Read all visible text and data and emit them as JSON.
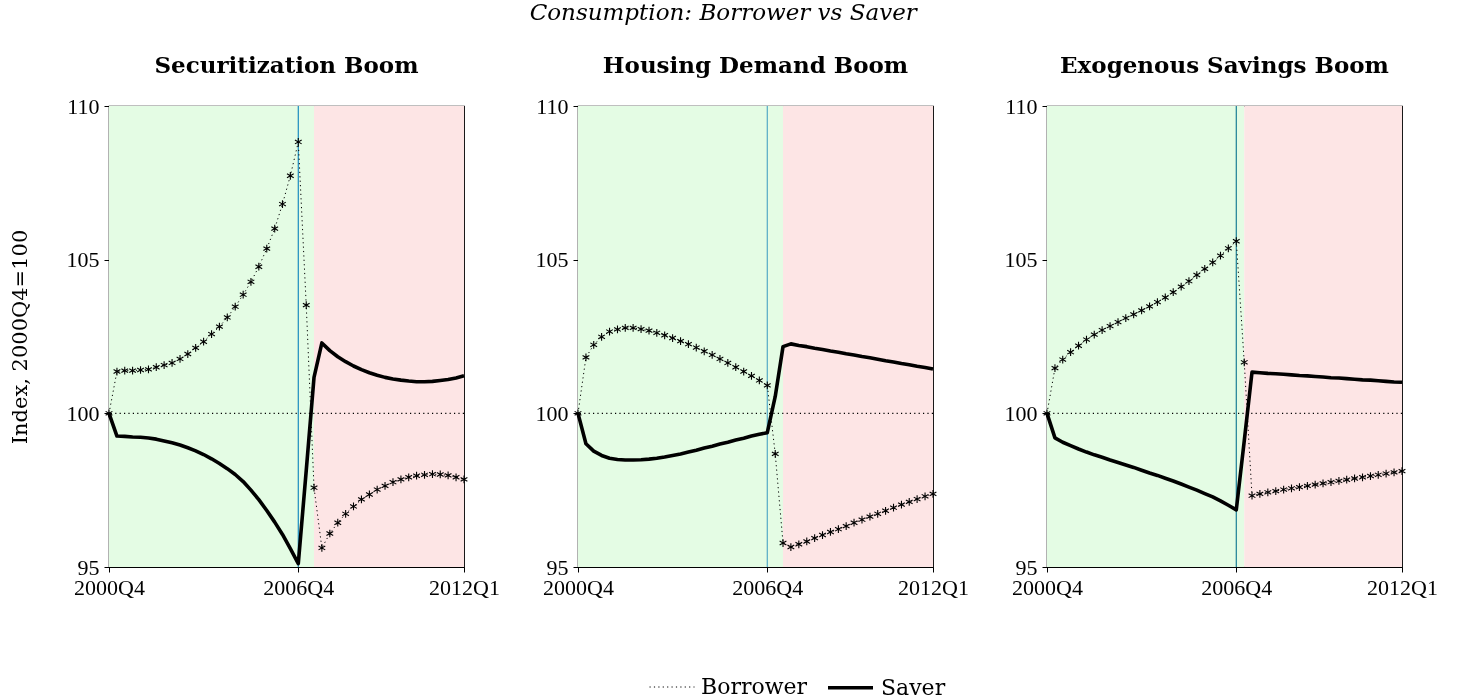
{
  "chart_data": [
    {
      "type": "line",
      "title": "Securitization Boom",
      "ylabel": "Index, 2000Q4=100",
      "annotations": [
        "Consumption: Borrower vs Saver"
      ],
      "x": [
        "2000-10",
        "2001-01",
        "2001-04",
        "2001-07",
        "2001-10",
        "2002-01",
        "2002-04",
        "2002-07",
        "2002-10",
        "2003-01",
        "2003-04",
        "2003-07",
        "2003-10",
        "2004-01",
        "2004-04",
        "2004-07",
        "2004-10",
        "2005-01",
        "2005-04",
        "2005-07",
        "2005-10",
        "2006-01",
        "2006-04",
        "2006-07",
        "2006-10",
        "2007-01",
        "2007-04",
        "2007-07",
        "2007-10",
        "2008-01",
        "2008-04",
        "2008-07",
        "2008-10",
        "2009-01",
        "2009-04",
        "2009-07",
        "2009-10",
        "2010-01",
        "2010-04",
        "2010-07",
        "2010-10",
        "2011-01",
        "2011-04",
        "2011-07",
        "2011-10",
        "2012-01"
      ],
      "xlim": [
        "2000-10",
        "2012-01"
      ],
      "xticks": [
        {
          "value": "2000-10",
          "label": "2000Q4"
        },
        {
          "value": "2006-10",
          "label": "2006Q4"
        },
        {
          "value": "2012-01",
          "label": "2012Q1"
        }
      ],
      "ylim": [
        95,
        110
      ],
      "yticks": [
        95,
        100,
        105,
        110
      ],
      "bands": [
        {
          "axis": "x",
          "from": "2000-10",
          "to": "2007-04",
          "color": "#e4fce4"
        },
        {
          "axis": "x",
          "from": "2007-04",
          "to": "2012-01",
          "color": "#fde5e5"
        }
      ],
      "ref_lines": [
        {
          "axis": "y",
          "value": 100,
          "color": "#000000",
          "line_style": "dotted"
        },
        {
          "axis": "x",
          "value": "2006-10",
          "color": "#1b8bbf",
          "line_style": "solid"
        }
      ],
      "series": [
        {
          "color": "#000000",
          "marker": "cross",
          "line_style": "dotted",
          "values": [
            100,
            101.36,
            101.39,
            101.39,
            101.41,
            101.43,
            101.5,
            101.57,
            101.64,
            101.77,
            101.93,
            102.13,
            102.33,
            102.58,
            102.82,
            103.12,
            103.47,
            103.86,
            104.28,
            104.77,
            105.36,
            106.01,
            106.81,
            107.73,
            108.83,
            103.52,
            97.58,
            95.62,
            96.09,
            96.44,
            96.73,
            96.97,
            97.2,
            97.36,
            97.52,
            97.64,
            97.76,
            97.85,
            97.92,
            97.97,
            98.0,
            98.02,
            98.01,
            97.98,
            97.92,
            97.85
          ]
        },
        {
          "color": "#000000",
          "line_style": "solid",
          "values": [
            100,
            99.26,
            99.25,
            99.23,
            99.22,
            99.2,
            99.16,
            99.1,
            99.04,
            98.97,
            98.88,
            98.78,
            98.66,
            98.52,
            98.37,
            98.2,
            98.01,
            97.78,
            97.5,
            97.19,
            96.84,
            96.46,
            96.06,
            95.6,
            95.11,
            98.14,
            101.17,
            102.29,
            102.04,
            101.84,
            101.68,
            101.54,
            101.42,
            101.32,
            101.24,
            101.17,
            101.12,
            101.08,
            101.05,
            101.03,
            101.03,
            101.04,
            101.07,
            101.1,
            101.15,
            101.22
          ]
        }
      ]
    },
    {
      "type": "line",
      "title": "Housing Demand Boom",
      "legend": "bottom",
      "x": [
        "2000-10",
        "2001-01",
        "2001-04",
        "2001-07",
        "2001-10",
        "2002-01",
        "2002-04",
        "2002-07",
        "2002-10",
        "2003-01",
        "2003-04",
        "2003-07",
        "2003-10",
        "2004-01",
        "2004-04",
        "2004-07",
        "2004-10",
        "2005-01",
        "2005-04",
        "2005-07",
        "2005-10",
        "2006-01",
        "2006-04",
        "2006-07",
        "2006-10",
        "2007-01",
        "2007-04",
        "2007-07",
        "2007-10",
        "2008-01",
        "2008-04",
        "2008-07",
        "2008-10",
        "2009-01",
        "2009-04",
        "2009-07",
        "2009-10",
        "2010-01",
        "2010-04",
        "2010-07",
        "2010-10",
        "2011-01",
        "2011-04",
        "2011-07",
        "2011-10",
        "2012-01"
      ],
      "xlim": [
        "2000-10",
        "2012-01"
      ],
      "xticks": [
        {
          "value": "2000-10",
          "label": "2000Q4"
        },
        {
          "value": "2006-10",
          "label": "2006Q4"
        },
        {
          "value": "2012-01",
          "label": "2012Q1"
        }
      ],
      "ylim": [
        95,
        110
      ],
      "yticks": [
        95,
        100,
        105,
        110
      ],
      "bands": [
        {
          "axis": "x",
          "from": "2000-10",
          "to": "2007-04",
          "color": "#e4fce4"
        },
        {
          "axis": "x",
          "from": "2007-04",
          "to": "2012-01",
          "color": "#fde5e5"
        }
      ],
      "ref_lines": [
        {
          "axis": "y",
          "value": 100,
          "color": "#000000",
          "line_style": "dotted"
        },
        {
          "axis": "x",
          "value": "2006-10",
          "color": "#55a9c6",
          "line_style": "solid"
        }
      ],
      "series": [
        {
          "name": "Borrower",
          "color": "#000000",
          "marker": "cross",
          "line_style": "dotted",
          "values": [
            100,
            101.82,
            102.23,
            102.49,
            102.66,
            102.73,
            102.78,
            102.78,
            102.74,
            102.69,
            102.62,
            102.54,
            102.45,
            102.35,
            102.25,
            102.14,
            102.02,
            101.9,
            101.77,
            101.64,
            101.5,
            101.36,
            101.22,
            101.07,
            100.91,
            98.68,
            95.78,
            95.65,
            95.74,
            95.83,
            95.94,
            96.04,
            96.14,
            96.23,
            96.33,
            96.44,
            96.54,
            96.64,
            96.73,
            96.83,
            96.93,
            97.03,
            97.12,
            97.21,
            97.3,
            97.38
          ]
        },
        {
          "name": "Saver",
          "color": "#000000",
          "line_style": "solid",
          "values": [
            100,
            99.01,
            98.77,
            98.63,
            98.54,
            98.5,
            98.48,
            98.48,
            98.49,
            98.51,
            98.54,
            98.58,
            98.63,
            98.68,
            98.74,
            98.8,
            98.87,
            98.93,
            99.0,
            99.06,
            99.13,
            99.19,
            99.26,
            99.32,
            99.37,
            100.55,
            102.17,
            102.26,
            102.21,
            102.17,
            102.12,
            102.08,
            102.03,
            101.99,
            101.94,
            101.9,
            101.85,
            101.81,
            101.76,
            101.71,
            101.67,
            101.62,
            101.58,
            101.53,
            101.49,
            101.44
          ]
        }
      ]
    },
    {
      "type": "line",
      "title": "Exogenous Savings Boom",
      "x": [
        "2000-10",
        "2001-01",
        "2001-04",
        "2001-07",
        "2001-10",
        "2002-01",
        "2002-04",
        "2002-07",
        "2002-10",
        "2003-01",
        "2003-04",
        "2003-07",
        "2003-10",
        "2004-01",
        "2004-04",
        "2004-07",
        "2004-10",
        "2005-01",
        "2005-04",
        "2005-07",
        "2005-10",
        "2006-01",
        "2006-04",
        "2006-07",
        "2006-10",
        "2007-01",
        "2007-04",
        "2007-07",
        "2007-10",
        "2008-01",
        "2008-04",
        "2008-07",
        "2008-10",
        "2009-01",
        "2009-04",
        "2009-07",
        "2009-10",
        "2010-01",
        "2010-04",
        "2010-07",
        "2010-10",
        "2011-01",
        "2011-04",
        "2011-07",
        "2011-10",
        "2012-01"
      ],
      "xlim": [
        "2000-10",
        "2012-01"
      ],
      "xticks": [
        {
          "value": "2000-10",
          "label": "2000Q4"
        },
        {
          "value": "2006-10",
          "label": "2006Q4"
        },
        {
          "value": "2012-01",
          "label": "2012Q1"
        }
      ],
      "ylim": [
        95,
        110
      ],
      "yticks": [
        95,
        100,
        105,
        110
      ],
      "bands": [
        {
          "axis": "x",
          "from": "2000-10",
          "to": "2007-01",
          "color": "#e4fce4"
        },
        {
          "axis": "x",
          "from": "2007-01",
          "to": "2012-01",
          "color": "#fde5e5"
        }
      ],
      "ref_lines": [
        {
          "axis": "y",
          "value": 100,
          "color": "#000000",
          "line_style": "dotted"
        },
        {
          "axis": "x",
          "value": "2006-10",
          "color": "#1a7d95",
          "line_style": "solid"
        }
      ],
      "series": [
        {
          "color": "#000000",
          "marker": "cross",
          "line_style": "dotted",
          "values": [
            100,
            101.47,
            101.75,
            101.99,
            102.2,
            102.4,
            102.56,
            102.71,
            102.84,
            102.97,
            103.1,
            103.22,
            103.35,
            103.48,
            103.62,
            103.77,
            103.94,
            104.12,
            104.3,
            104.5,
            104.7,
            104.91,
            105.13,
            105.37,
            105.6,
            101.66,
            97.32,
            97.38,
            97.43,
            97.47,
            97.52,
            97.56,
            97.6,
            97.64,
            97.68,
            97.72,
            97.76,
            97.8,
            97.84,
            97.88,
            97.92,
            97.96,
            98.0,
            98.04,
            98.08,
            98.12
          ]
        },
        {
          "color": "#000000",
          "line_style": "solid",
          "values": [
            100,
            99.2,
            99.06,
            98.95,
            98.84,
            98.74,
            98.65,
            98.57,
            98.48,
            98.4,
            98.32,
            98.24,
            98.15,
            98.06,
            97.98,
            97.89,
            97.8,
            97.7,
            97.6,
            97.5,
            97.39,
            97.28,
            97.15,
            97.01,
            96.86,
            99.1,
            101.34,
            101.32,
            101.3,
            101.29,
            101.27,
            101.25,
            101.23,
            101.22,
            101.2,
            101.18,
            101.16,
            101.15,
            101.13,
            101.11,
            101.09,
            101.08,
            101.06,
            101.04,
            101.02,
            101.01
          ]
        }
      ]
    }
  ]
}
